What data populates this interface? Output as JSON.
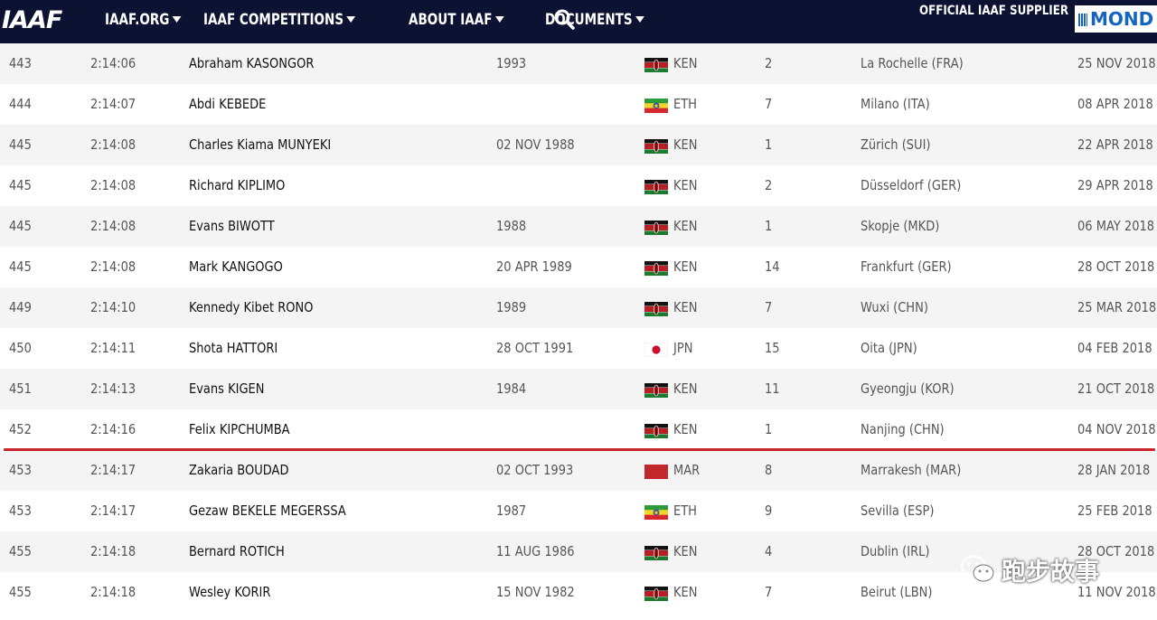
{
  "header": {
    "logo": "IAAF",
    "nav": [
      {
        "label": "IAAF.ORG",
        "caret": true
      },
      {
        "label": "IAAF COMPETITIONS",
        "caret": true
      },
      {
        "label": "ABOUT IAAF",
        "caret": true
      },
      {
        "label": "DOCUMENTS",
        "caret": true
      }
    ],
    "search_icon": "search-icon",
    "supplier_text": "OFFICIAL IAAF SUPPLIER",
    "supplier_logo": "MOND"
  },
  "colors": {
    "nav_bg": "#0b1232",
    "divider": "#c8252c",
    "row_alt": "#f4f4f4"
  },
  "rows": [
    {
      "rank": "443",
      "mark": "2:14:06",
      "name": "Abraham KASONGOR",
      "dob": "1993",
      "nat": "KEN",
      "pos": "2",
      "venue": "La Rochelle (FRA)",
      "date": "25 NOV 2018"
    },
    {
      "rank": "444",
      "mark": "2:14:07",
      "name": "Abdi KEBEDE",
      "dob": "",
      "nat": "ETH",
      "pos": "7",
      "venue": "Milano (ITA)",
      "date": "08 APR 2018"
    },
    {
      "rank": "445",
      "mark": "2:14:08",
      "name": "Charles Kiama MUNYEKI",
      "dob": "02 NOV 1988",
      "nat": "KEN",
      "pos": "1",
      "venue": "Zürich (SUI)",
      "date": "22 APR 2018"
    },
    {
      "rank": "445",
      "mark": "2:14:08",
      "name": "Richard KIPLIMO",
      "dob": "",
      "nat": "KEN",
      "pos": "2",
      "venue": "Düsseldorf (GER)",
      "date": "29 APR 2018"
    },
    {
      "rank": "445",
      "mark": "2:14:08",
      "name": "Evans BIWOTT",
      "dob": "1988",
      "nat": "KEN",
      "pos": "1",
      "venue": "Skopje (MKD)",
      "date": "06 MAY 2018"
    },
    {
      "rank": "445",
      "mark": "2:14:08",
      "name": "Mark KANGOGO",
      "dob": "20 APR 1989",
      "nat": "KEN",
      "pos": "14",
      "venue": "Frankfurt (GER)",
      "date": "28 OCT 2018"
    },
    {
      "rank": "449",
      "mark": "2:14:10",
      "name": "Kennedy Kibet RONO",
      "dob": "1989",
      "nat": "KEN",
      "pos": "7",
      "venue": "Wuxi (CHN)",
      "date": "25 MAR 2018"
    },
    {
      "rank": "450",
      "mark": "2:14:11",
      "name": "Shota HATTORI",
      "dob": "28 OCT 1991",
      "nat": "JPN",
      "pos": "15",
      "venue": "Oita (JPN)",
      "date": "04 FEB 2018"
    },
    {
      "rank": "451",
      "mark": "2:14:13",
      "name": "Evans KIGEN",
      "dob": "1984",
      "nat": "KEN",
      "pos": "11",
      "venue": "Gyeongju (KOR)",
      "date": "21 OCT 2018"
    },
    {
      "rank": "452",
      "mark": "2:14:16",
      "name": "Felix KIPCHUMBA",
      "dob": "",
      "nat": "KEN",
      "pos": "1",
      "venue": "Nanjing (CHN)",
      "date": "04 NOV 2018"
    },
    {
      "rank": "453",
      "mark": "2:14:17",
      "name": "Zakaria BOUDAD",
      "dob": "02 OCT 1993",
      "nat": "MAR",
      "pos": "8",
      "venue": "Marrakesh (MAR)",
      "date": "28 JAN 2018"
    },
    {
      "rank": "453",
      "mark": "2:14:17",
      "name": "Gezaw BEKELE MEGERSSA",
      "dob": "1987",
      "nat": "ETH",
      "pos": "9",
      "venue": "Sevilla (ESP)",
      "date": "25 FEB 2018"
    },
    {
      "rank": "455",
      "mark": "2:14:18",
      "name": "Bernard ROTICH",
      "dob": "11 AUG 1986",
      "nat": "KEN",
      "pos": "4",
      "venue": "Dublin (IRL)",
      "date": "28 OCT 2018"
    },
    {
      "rank": "455",
      "mark": "2:14:18",
      "name": "Wesley KORIR",
      "dob": "15 NOV 1982",
      "nat": "KEN",
      "pos": "7",
      "venue": "Beirut (LBN)",
      "date": "11 NOV 2018"
    }
  ],
  "watermark": {
    "text": "跑步故事",
    "icon": "wechat-icon"
  }
}
